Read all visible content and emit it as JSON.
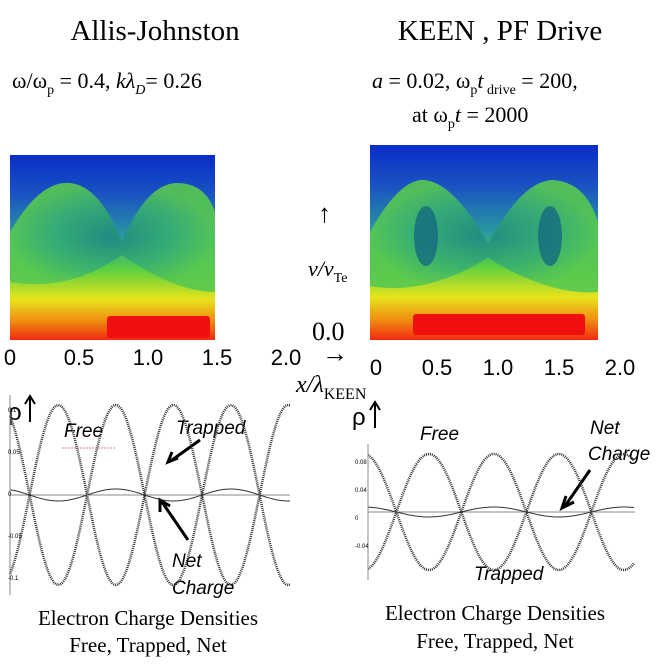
{
  "left": {
    "title": "Allis-Johnston",
    "params": [
      "ω/ω",
      "p",
      " = 0.4, ",
      "kλ",
      "D",
      "= 0.26"
    ],
    "x_ticks": [
      "0",
      "0.5",
      "1.0",
      "1.5",
      "2.0"
    ],
    "plot": {
      "y_label": "ρ",
      "y_ticks": [
        "0.1",
        "0.05",
        "0",
        "-0.05",
        "-0.1"
      ],
      "labels": [
        "Free",
        "Trapped",
        "Net",
        "Charge"
      ]
    },
    "caption": [
      "Electron Charge Densities",
      "Free, Trapped, Net"
    ]
  },
  "right": {
    "title": "KEEN , PF Drive",
    "params_line1": [
      "a",
      " = 0.02, ω",
      "p",
      "t",
      " drive",
      " = 200,"
    ],
    "params_line2": [
      "at ω",
      "p",
      "t",
      "  = 2000"
    ],
    "x_ticks": [
      "0",
      "0.5",
      "1.0",
      "1.5",
      "2.0"
    ],
    "plot": {
      "y_label": "ρ",
      "y_ticks": [
        "0.08",
        "0.04",
        "0",
        "-0.04"
      ],
      "labels": [
        "Free",
        "Net",
        "Charge",
        "Trapped"
      ]
    },
    "caption": [
      "Electron Charge Densities",
      "Free, Trapped, Net"
    ]
  },
  "axes": {
    "v_arrow": "↑",
    "v_label": [
      "v/v",
      "Te"
    ],
    "zero": "0.0",
    "x_arrow": "→",
    "x_label": [
      "x/λ",
      "KEEN"
    ]
  }
}
